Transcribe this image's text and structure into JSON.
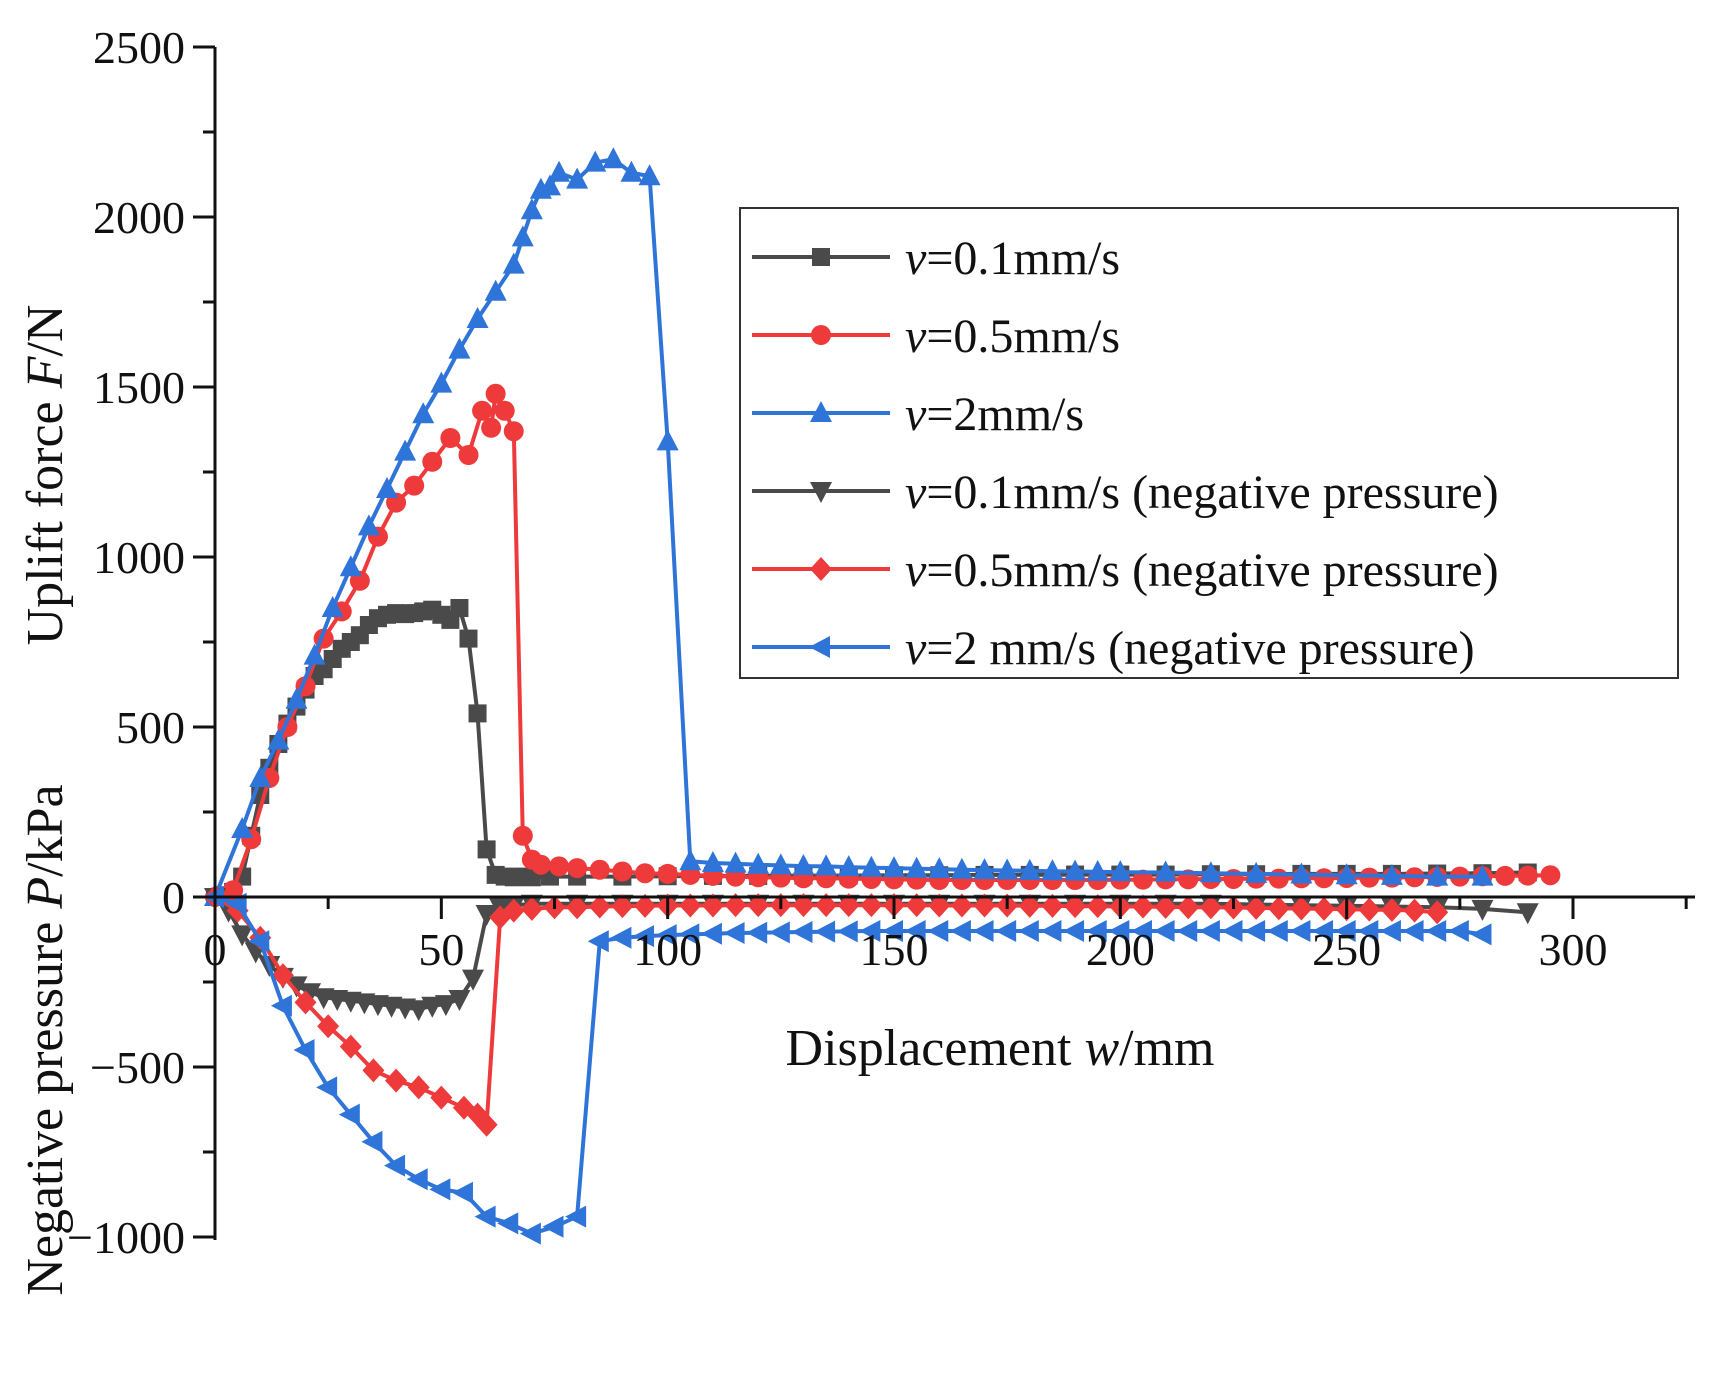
{
  "chart_data": {
    "type": "line",
    "title": "",
    "xlabel": {
      "prefix": "Displacement ",
      "var": "w",
      "suffix": "/mm"
    },
    "ylabel": {
      "upper": {
        "prefix": "Uplift force ",
        "var": "F",
        "suffix": "/N"
      },
      "lower": {
        "prefix": "Negative pressure ",
        "var": "P",
        "suffix": "/kPa"
      }
    },
    "xlim": [
      0,
      325
    ],
    "ylim": [
      -1000,
      2500
    ],
    "xticks": [
      0,
      50,
      100,
      150,
      200,
      250,
      300
    ],
    "yticks": [
      -1000,
      -500,
      0,
      500,
      1000,
      1500,
      2000,
      2500
    ],
    "xtick_labels": [
      "0",
      "50",
      "100",
      "150",
      "200",
      "250",
      "300"
    ],
    "ytick_labels": [
      "−1000",
      "−500",
      "0",
      "500",
      "1000",
      "1500",
      "2000",
      "2500"
    ],
    "legend_position": "upper-right",
    "series": [
      {
        "name": "v=0.1mm/s",
        "label_var": "v",
        "label_rest": "=0.1mm/s",
        "color": "#4a4a4a",
        "marker": "square",
        "x": [
          0,
          2,
          4,
          6,
          8,
          10,
          12,
          14,
          16,
          18,
          20,
          22,
          24,
          26,
          28,
          30,
          32,
          34,
          36,
          38,
          40,
          42,
          44,
          46,
          48,
          50,
          52,
          54,
          56,
          58,
          60,
          62,
          64,
          66,
          68,
          70,
          74,
          80,
          90,
          100,
          110,
          120,
          130,
          140,
          150,
          160,
          170,
          180,
          190,
          200,
          210,
          220,
          230,
          240,
          250,
          260,
          270,
          280,
          290
        ],
        "y": [
          0,
          5,
          15,
          60,
          180,
          300,
          380,
          450,
          510,
          560,
          610,
          650,
          670,
          700,
          730,
          750,
          770,
          800,
          820,
          830,
          835,
          832,
          835,
          840,
          845,
          830,
          815,
          850,
          760,
          540,
          140,
          65,
          60,
          58,
          60,
          58,
          60,
          60,
          60,
          61,
          62,
          62,
          63,
          63,
          64,
          64,
          65,
          65,
          66,
          66,
          66,
          67,
          67,
          68,
          68,
          68,
          69,
          70,
          72
        ]
      },
      {
        "name": "v=0.5mm/s",
        "label_var": "v",
        "label_rest": "=0.5mm/s",
        "color": "#ee3a3a",
        "marker": "circle",
        "x": [
          0,
          4,
          8,
          12,
          16,
          20,
          24,
          28,
          32,
          36,
          40,
          44,
          48,
          52,
          56,
          59,
          61,
          62,
          64,
          66,
          68,
          70,
          72,
          76,
          80,
          85,
          90,
          95,
          100,
          105,
          110,
          115,
          120,
          125,
          130,
          135,
          140,
          145,
          150,
          155,
          160,
          165,
          170,
          175,
          180,
          185,
          190,
          195,
          200,
          205,
          210,
          215,
          220,
          225,
          230,
          235,
          240,
          245,
          250,
          255,
          260,
          265,
          270,
          275,
          280,
          285,
          290,
          295
        ],
        "y": [
          0,
          20,
          170,
          350,
          500,
          620,
          760,
          840,
          930,
          1060,
          1160,
          1210,
          1280,
          1350,
          1300,
          1430,
          1380,
          1480,
          1430,
          1370,
          180,
          110,
          95,
          90,
          85,
          80,
          75,
          70,
          68,
          65,
          62,
          60,
          58,
          57,
          55,
          55,
          54,
          53,
          52,
          51,
          50,
          50,
          50,
          50,
          50,
          50,
          50,
          50,
          51,
          51,
          52,
          52,
          53,
          53,
          54,
          54,
          55,
          55,
          56,
          57,
          57,
          58,
          59,
          60,
          61,
          62,
          63,
          64
        ]
      },
      {
        "name": "v=2mm/s",
        "label_var": "v",
        "label_rest": "=2mm/s",
        "color": "#2f74d8",
        "marker": "triangle-up",
        "x": [
          0,
          6,
          10,
          14,
          18,
          22,
          26,
          30,
          34,
          38,
          42,
          46,
          50,
          54,
          58,
          62,
          66,
          68,
          70,
          72,
          74,
          76,
          80,
          84,
          88,
          92,
          96,
          100,
          105,
          110,
          115,
          120,
          125,
          130,
          135,
          140,
          145,
          150,
          155,
          160,
          165,
          170,
          175,
          180,
          185,
          190,
          195,
          200,
          210,
          220,
          230,
          240,
          250,
          260,
          270,
          280
        ],
        "y": [
          0,
          200,
          350,
          460,
          580,
          710,
          850,
          970,
          1090,
          1200,
          1310,
          1420,
          1510,
          1610,
          1700,
          1780,
          1860,
          1940,
          2020,
          2080,
          2090,
          2130,
          2110,
          2160,
          2170,
          2130,
          2120,
          1340,
          105,
          100,
          98,
          95,
          93,
          91,
          90,
          88,
          86,
          85,
          83,
          82,
          80,
          79,
          78,
          77,
          76,
          75,
          74,
          73,
          72,
          70,
          68,
          66,
          64,
          62,
          60,
          60
        ]
      },
      {
        "name": "v=0.1mm/s (negative pressure)",
        "label_var": "v",
        "label_rest": "=0.1mm/s (negative pressure)",
        "color": "#4a4a4a",
        "marker": "triangle-down",
        "x": [
          0,
          3,
          6,
          9,
          12,
          15,
          18,
          21,
          24,
          27,
          30,
          33,
          36,
          39,
          42,
          45,
          48,
          51,
          54,
          57,
          60,
          63,
          66,
          70,
          80,
          90,
          100,
          110,
          120,
          130,
          140,
          150,
          160,
          170,
          180,
          190,
          200,
          210,
          220,
          230,
          240,
          250,
          260,
          270,
          280,
          290
        ],
        "y": [
          0,
          -40,
          -110,
          -160,
          -200,
          -235,
          -260,
          -280,
          -295,
          -300,
          -305,
          -310,
          -315,
          -320,
          -325,
          -330,
          -320,
          -315,
          -300,
          -240,
          -50,
          -30,
          -25,
          -20,
          -20,
          -20,
          -20,
          -20,
          -20,
          -20,
          -20,
          -20,
          -20,
          -20,
          -20,
          -20,
          -20,
          -20,
          -20,
          -22,
          -24,
          -26,
          -28,
          -30,
          -35,
          -45
        ]
      },
      {
        "name": "v=0.5mm/s (negative pressure)",
        "label_var": "v",
        "label_rest": "=0.5mm/s (negative pressure)",
        "color": "#ee3a3a",
        "marker": "diamond",
        "x": [
          0,
          5,
          10,
          15,
          20,
          25,
          30,
          35,
          40,
          45,
          50,
          55,
          58,
          60,
          63,
          66,
          70,
          75,
          80,
          85,
          90,
          95,
          100,
          105,
          110,
          115,
          120,
          125,
          130,
          135,
          140,
          145,
          150,
          155,
          160,
          165,
          170,
          175,
          180,
          185,
          190,
          195,
          200,
          205,
          210,
          215,
          220,
          225,
          230,
          235,
          240,
          245,
          250,
          255,
          260,
          265,
          270
        ],
        "y": [
          0,
          -40,
          -120,
          -230,
          -310,
          -380,
          -440,
          -510,
          -540,
          -560,
          -590,
          -620,
          -640,
          -670,
          -60,
          -40,
          -35,
          -30,
          -30,
          -28,
          -27,
          -26,
          -25,
          -25,
          -25,
          -24,
          -24,
          -24,
          -24,
          -24,
          -24,
          -24,
          -24,
          -24,
          -25,
          -25,
          -25,
          -25,
          -26,
          -26,
          -27,
          -27,
          -28,
          -28,
          -29,
          -30,
          -30,
          -31,
          -32,
          -33,
          -34,
          -35,
          -36,
          -37,
          -38,
          -40,
          -45
        ]
      },
      {
        "name": "v=2 mm/s (negative pressure)",
        "label_var": "v",
        "label_rest": "=2 mm/s (negative pressure)",
        "color": "#2f74d8",
        "marker": "triangle-left",
        "x": [
          0,
          5,
          10,
          15,
          20,
          25,
          30,
          35,
          40,
          45,
          50,
          55,
          60,
          65,
          70,
          75,
          80,
          85,
          90,
          95,
          100,
          105,
          110,
          115,
          120,
          125,
          130,
          135,
          140,
          145,
          150,
          155,
          160,
          165,
          170,
          175,
          180,
          185,
          190,
          195,
          200,
          205,
          210,
          215,
          220,
          225,
          230,
          235,
          240,
          245,
          250,
          255,
          260,
          265,
          270,
          275,
          280
        ],
        "y": [
          0,
          -20,
          -130,
          -320,
          -450,
          -560,
          -640,
          -720,
          -790,
          -830,
          -860,
          -870,
          -940,
          -960,
          -990,
          -970,
          -940,
          -130,
          -120,
          -115,
          -112,
          -110,
          -108,
          -106,
          -105,
          -104,
          -103,
          -102,
          -101,
          -100,
          -100,
          -100,
          -100,
          -100,
          -100,
          -100,
          -100,
          -100,
          -100,
          -100,
          -100,
          -100,
          -100,
          -100,
          -100,
          -100,
          -100,
          -100,
          -100,
          -100,
          -100,
          -100,
          -100,
          -100,
          -100,
          -100,
          -110
        ]
      }
    ]
  }
}
